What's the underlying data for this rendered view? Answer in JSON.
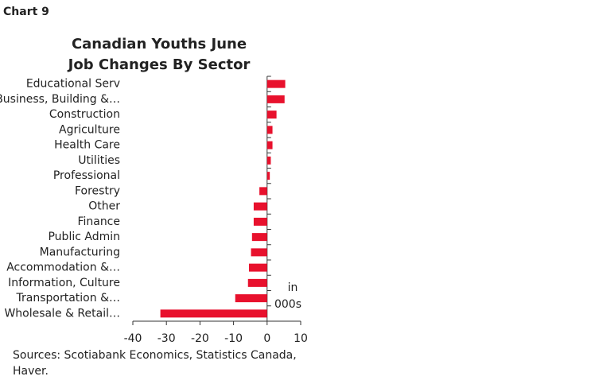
{
  "chart_label": "Chart 9",
  "chart_data": {
    "type": "barh",
    "title": [
      "Canadian Youths June",
      "Job Changes By Sector"
    ],
    "categories": [
      "Educational Serv",
      "Business, Building &…",
      "Construction",
      "Agriculture",
      "Health Care",
      "Utilities",
      "Professional",
      "Forestry",
      "Other",
      "Finance",
      "Public Admin",
      "Manufacturing",
      "Accommodation &…",
      "Information, Culture",
      "Transportation &…",
      "Wholesale & Retail…"
    ],
    "values": [
      5.4,
      5.2,
      2.8,
      1.6,
      1.6,
      1.1,
      0.8,
      -2.3,
      -4.0,
      -4.0,
      -4.5,
      -4.8,
      -5.4,
      -5.7,
      -9.5,
      -31.8
    ],
    "color": "#e8112d",
    "xlim": [
      -40,
      10
    ],
    "xticks": [
      -40,
      -30,
      -20,
      -10,
      0,
      10
    ],
    "annotation": [
      "in",
      "000s"
    ],
    "source": [
      "Sources: Scotiabank Economics, Statistics Canada,",
      "Haver."
    ]
  }
}
